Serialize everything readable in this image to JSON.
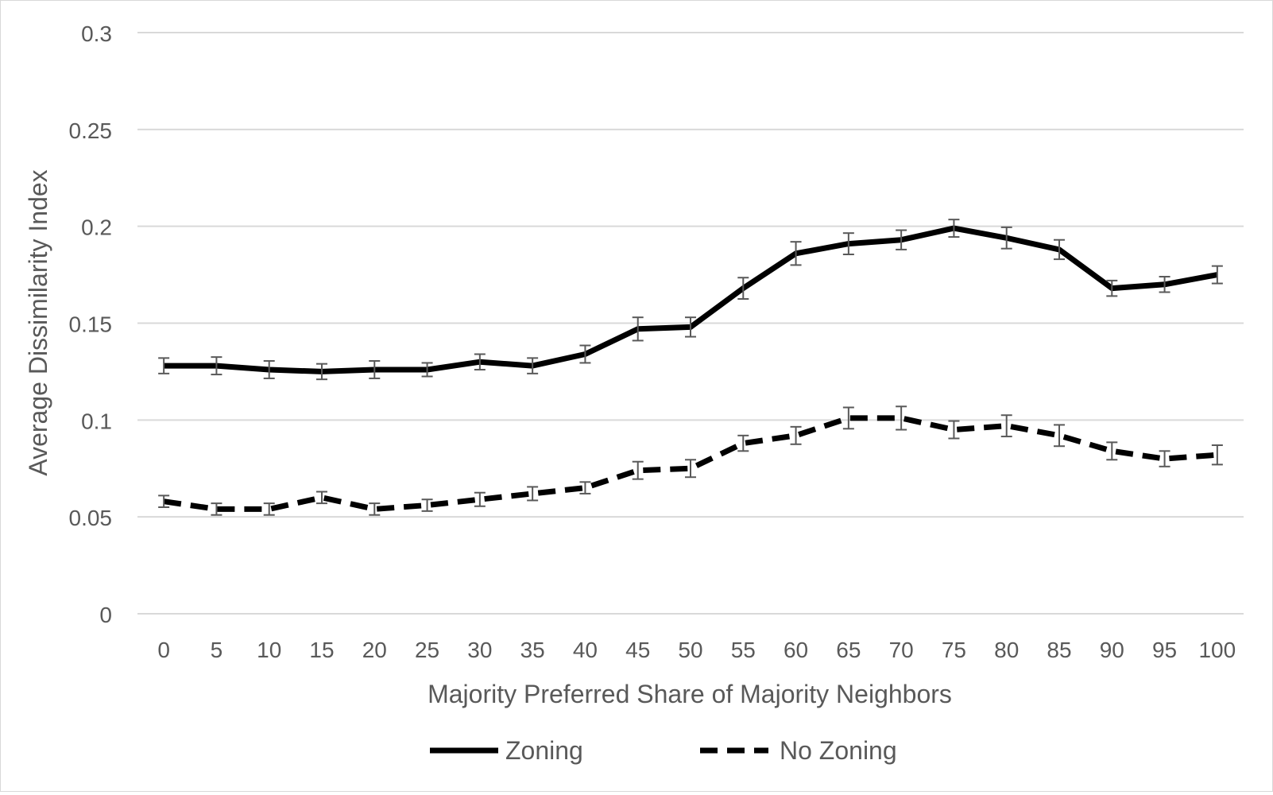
{
  "chart_data": {
    "type": "line",
    "title": "",
    "xlabel": "Majority Preferred Share of Majority Neighbors",
    "ylabel": "Average Dissimilarity Index",
    "ylim": [
      0,
      0.3
    ],
    "grid": true,
    "legend_position": "bottom",
    "y_ticks": [
      "0",
      "0.05",
      "0.1",
      "0.15",
      "0.2",
      "0.25",
      "0.3"
    ],
    "y_tick_values": [
      0,
      0.05,
      0.1,
      0.15,
      0.2,
      0.25,
      0.3
    ],
    "categories": [
      "0",
      "5",
      "10",
      "15",
      "20",
      "25",
      "30",
      "35",
      "40",
      "45",
      "50",
      "55",
      "60",
      "65",
      "70",
      "75",
      "80",
      "85",
      "90",
      "95",
      "100"
    ],
    "series": [
      {
        "name": "Zoning",
        "line_style": "solid",
        "color": "#000000",
        "values": [
          0.128,
          0.128,
          0.126,
          0.125,
          0.126,
          0.126,
          0.13,
          0.128,
          0.134,
          0.147,
          0.148,
          0.168,
          0.186,
          0.191,
          0.193,
          0.199,
          0.194,
          0.188,
          0.168,
          0.17,
          0.175
        ],
        "error": [
          0.004,
          0.0045,
          0.0045,
          0.004,
          0.0045,
          0.0035,
          0.004,
          0.004,
          0.0045,
          0.006,
          0.005,
          0.0055,
          0.006,
          0.0055,
          0.005,
          0.0045,
          0.0055,
          0.005,
          0.004,
          0.004,
          0.0045
        ]
      },
      {
        "name": "No Zoning",
        "line_style": "dashed",
        "color": "#000000",
        "values": [
          0.058,
          0.054,
          0.054,
          0.06,
          0.054,
          0.056,
          0.059,
          0.062,
          0.065,
          0.074,
          0.075,
          0.088,
          0.092,
          0.101,
          0.101,
          0.095,
          0.097,
          0.092,
          0.084,
          0.08,
          0.082
        ],
        "error": [
          0.003,
          0.003,
          0.003,
          0.003,
          0.003,
          0.003,
          0.0035,
          0.0035,
          0.003,
          0.0045,
          0.0045,
          0.004,
          0.0045,
          0.0055,
          0.006,
          0.0045,
          0.0055,
          0.0055,
          0.0045,
          0.004,
          0.005
        ]
      }
    ],
    "colors": {
      "gridline": "#d9d9d9",
      "axis_text": "#595959",
      "error_bar": "#595959"
    }
  }
}
